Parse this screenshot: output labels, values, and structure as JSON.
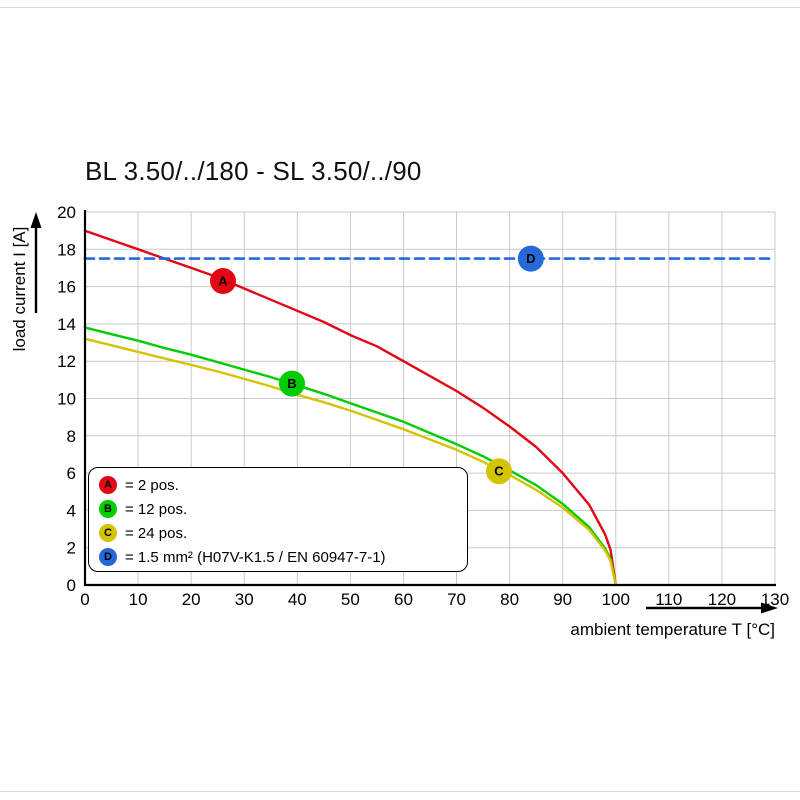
{
  "chart_data": {
    "type": "line",
    "title": "BL 3.50/../180 - SL 3.50/../90",
    "xlabel": "ambient temperature T [°C]",
    "ylabel": "load current I [A]",
    "xlim": [
      0,
      130
    ],
    "ylim": [
      0,
      20
    ],
    "x_ticks": [
      0,
      10,
      20,
      30,
      40,
      50,
      60,
      70,
      80,
      90,
      100,
      110,
      120,
      130
    ],
    "y_ticks": [
      0,
      2,
      4,
      6,
      8,
      10,
      12,
      14,
      16,
      18,
      20
    ],
    "grid": true,
    "colors": {
      "grid": "#c9c9c9",
      "axis": "#000000"
    },
    "series": [
      {
        "name": "A",
        "description": "2 pos.",
        "color": "#e30613",
        "style": "solid",
        "x": [
          0,
          5,
          10,
          15,
          20,
          25,
          30,
          35,
          40,
          45,
          50,
          55,
          60,
          65,
          70,
          75,
          80,
          85,
          90,
          95,
          98,
          99,
          100
        ],
        "y": [
          19,
          18.5,
          18.0,
          17.5,
          17.0,
          16.5,
          15.9,
          15.3,
          14.7,
          14.1,
          13.4,
          12.8,
          12.0,
          11.2,
          10.4,
          9.5,
          8.5,
          7.4,
          6.0,
          4.3,
          2.7,
          1.9,
          0
        ],
        "marker": {
          "letter": "A",
          "x": 26,
          "y": 16.3
        }
      },
      {
        "name": "B",
        "description": "12 pos.",
        "color": "#00cc00",
        "style": "solid",
        "x": [
          0,
          5,
          10,
          15,
          20,
          25,
          30,
          35,
          40,
          45,
          50,
          55,
          60,
          65,
          70,
          75,
          80,
          85,
          90,
          95,
          98,
          99,
          100
        ],
        "y": [
          13.8,
          13.45,
          13.1,
          12.7,
          12.35,
          11.95,
          11.55,
          11.15,
          10.7,
          10.25,
          9.75,
          9.25,
          8.75,
          8.15,
          7.55,
          6.9,
          6.15,
          5.35,
          4.35,
          3.1,
          1.95,
          1.4,
          0
        ],
        "marker": {
          "letter": "B",
          "x": 39,
          "y": 10.8
        }
      },
      {
        "name": "C",
        "description": "24 pos.",
        "color": "#d4c300",
        "style": "solid",
        "x": [
          0,
          5,
          10,
          15,
          20,
          25,
          30,
          35,
          40,
          45,
          50,
          55,
          60,
          65,
          70,
          75,
          80,
          85,
          90,
          95,
          98,
          99,
          100
        ],
        "y": [
          13.2,
          12.85,
          12.5,
          12.15,
          11.8,
          11.45,
          11.05,
          10.65,
          10.2,
          9.8,
          9.35,
          8.85,
          8.35,
          7.8,
          7.25,
          6.6,
          5.9,
          5.1,
          4.15,
          2.95,
          1.85,
          1.3,
          0
        ],
        "marker": {
          "letter": "C",
          "x": 78,
          "y": 6.1
        }
      },
      {
        "name": "D",
        "description": "1.5 mm² (H07V-K1.5 / EN 60947-7-1)",
        "color": "#2468d9",
        "style": "dashed",
        "x": [
          0,
          130
        ],
        "y": [
          17.5,
          17.5
        ],
        "marker": {
          "letter": "D",
          "x": 84,
          "y": 17.5
        }
      }
    ],
    "legend": {
      "position": "lower left",
      "entries": [
        {
          "letter": "A",
          "color": "#e30613",
          "text": "= 2 pos."
        },
        {
          "letter": "B",
          "color": "#00cc00",
          "text": "= 12 pos."
        },
        {
          "letter": "C",
          "color": "#d4c300",
          "text": "= 24 pos."
        },
        {
          "letter": "D",
          "color": "#2468d9",
          "text": "= 1.5 mm² (H07V-K1.5 / EN 60947-7-1)"
        }
      ]
    }
  }
}
